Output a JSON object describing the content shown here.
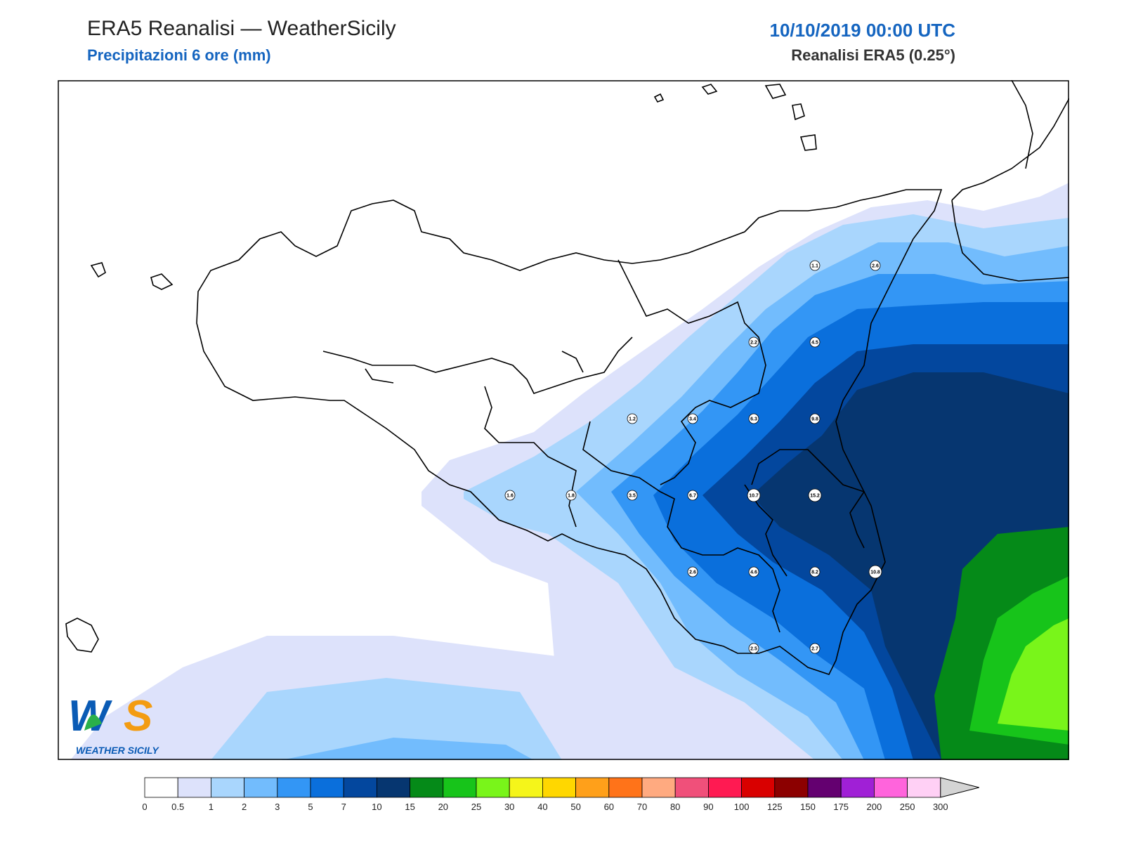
{
  "header": {
    "title": "ERA5 Reanalisi — WeatherSicily",
    "subtitle": "Precipitazioni 6 ore (mm)",
    "datetime": "10/10/2019 00:00 UTC",
    "model": "Reanalisi ERA5 (0.25°)"
  },
  "logo": {
    "line1": "WS",
    "line2": "WEATHER SICILY"
  },
  "map": {
    "region": "Sicily",
    "point_values": [
      "1.1",
      "2.6",
      "2.2",
      "4.5",
      "1.2",
      "3.4",
      "6.3",
      "9.8",
      "1.6",
      "1.8",
      "3.5",
      "6.7",
      "10.7",
      "15.2",
      "2.6",
      "4.6",
      "8.2",
      "10.8",
      "2.5",
      "2.7"
    ]
  },
  "legend": {
    "ticks": [
      "0",
      "0.5",
      "1",
      "2",
      "3",
      "5",
      "7",
      "10",
      "15",
      "20",
      "25",
      "30",
      "40",
      "50",
      "60",
      "70",
      "80",
      "90",
      "100",
      "125",
      "150",
      "175",
      "200",
      "250",
      "300"
    ],
    "colors": [
      "#ffffff",
      "#dde2fb",
      "#a9d6fd",
      "#72bcfd",
      "#3396f5",
      "#0a6fdc",
      "#03479e",
      "#063670",
      "#058a18",
      "#17c41a",
      "#79f51a",
      "#f5f51a",
      "#ffd700",
      "#ffa01a",
      "#ff7319",
      "#ffaa80",
      "#f0507a",
      "#ff1a52",
      "#d90000",
      "#8c0000",
      "#640070",
      "#a020d6",
      "#ff64dc",
      "#ffd0f5",
      "#d4d4d4"
    ]
  }
}
